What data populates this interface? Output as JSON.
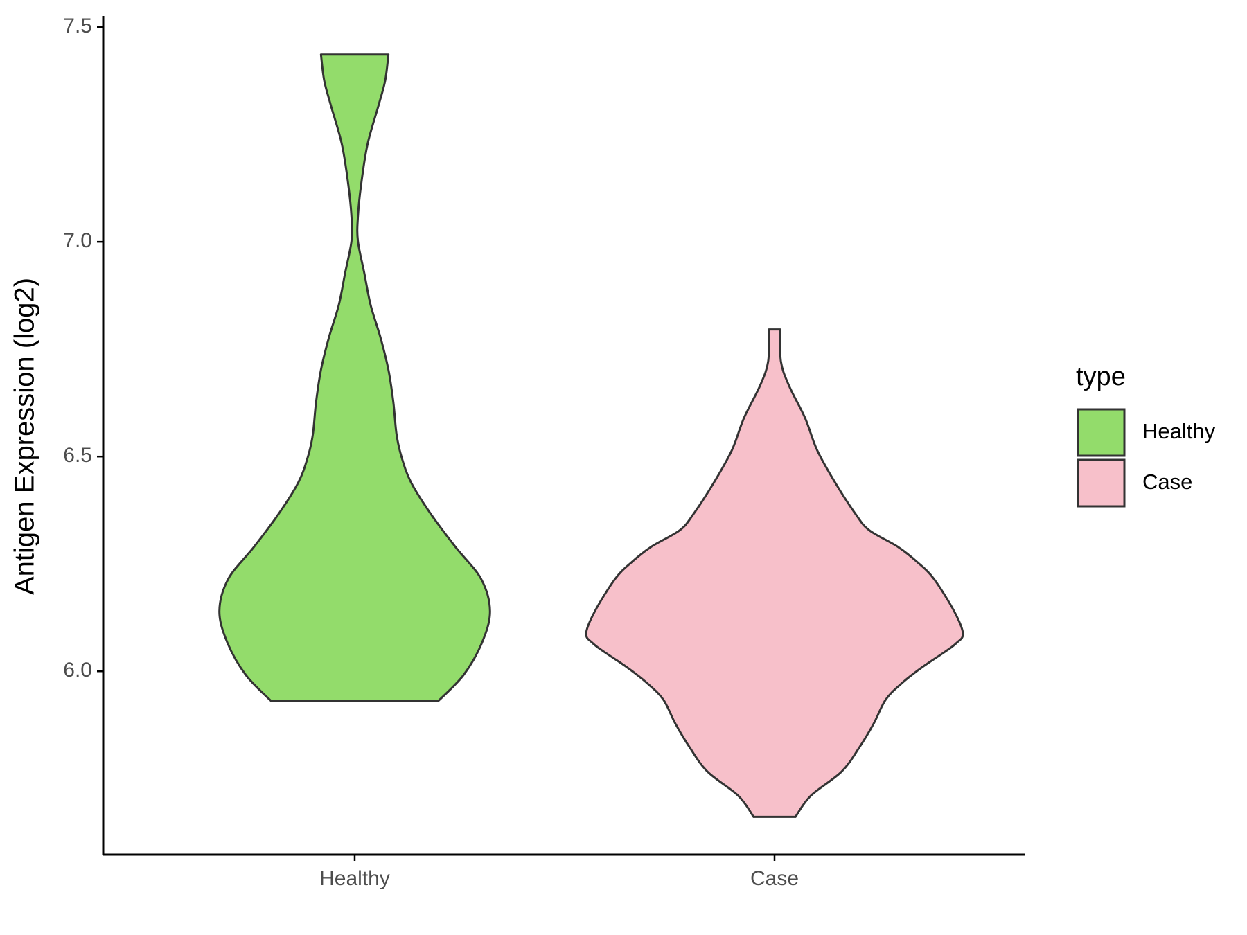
{
  "chart_data": {
    "type": "violin",
    "y_label": "Antigen Expression (log2)",
    "categories": [
      "Healthy",
      "Case"
    ],
    "ylim": [
      5.573,
      7.526
    ],
    "yticks": [
      {
        "value": 6,
        "label": "6.0"
      },
      6.5,
      {
        "value": 7,
        "label": "7.0"
      },
      7.5
    ],
    "legend_title": "type",
    "legend_position": "right",
    "series": [
      {
        "name": "Healthy",
        "color": "#93dc6b",
        "y": [
          5.931,
          5.991,
          6.066,
          6.14,
          6.215,
          6.29,
          6.365,
          6.44,
          6.5,
          6.552,
          6.627,
          6.702,
          6.777,
          6.852,
          6.927,
          7.002,
          7.058,
          7.133,
          7.227,
          7.32,
          7.376,
          7.436
        ],
        "density": [
          0.444,
          0.577,
          0.675,
          0.718,
          0.671,
          0.534,
          0.406,
          0.299,
          0.248,
          0.222,
          0.205,
          0.179,
          0.137,
          0.085,
          0.051,
          0.017,
          0.017,
          0.034,
          0.068,
          0.128,
          0.162,
          0.179
        ]
      },
      {
        "name": "Case",
        "color": "#f7c0ca",
        "y": [
          5.661,
          5.71,
          5.766,
          5.822,
          5.878,
          5.934,
          5.972,
          6.009,
          6.047,
          6.066,
          6.088,
          6.14,
          6.215,
          6.253,
          6.29,
          6.328,
          6.365,
          6.44,
          6.515,
          6.59,
          6.665,
          6.721,
          6.796
        ],
        "density": [
          0.111,
          0.192,
          0.355,
          0.449,
          0.526,
          0.59,
          0.675,
          0.782,
          0.91,
          0.966,
          1.0,
          0.953,
          0.846,
          0.761,
          0.654,
          0.504,
          0.432,
          0.321,
          0.226,
          0.162,
          0.077,
          0.034,
          0.03
        ]
      }
    ]
  }
}
